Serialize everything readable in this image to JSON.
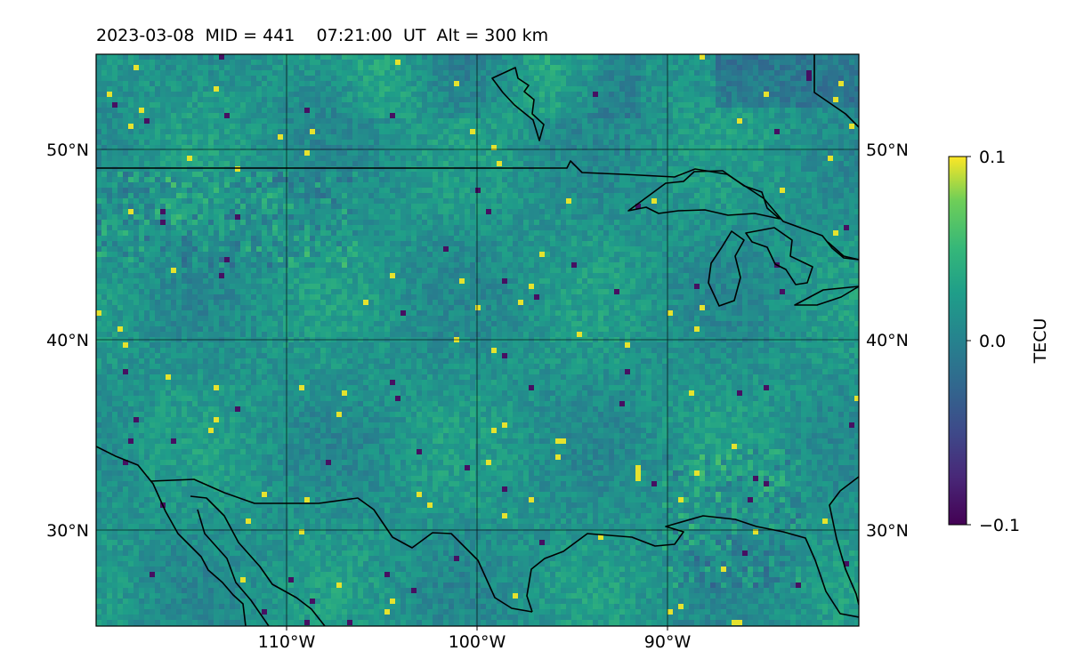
{
  "title": "2023-03-08  MID = 441    07:21:00  UT  Alt = 300 km",
  "map": {
    "lon_range": [
      -120,
      -80
    ],
    "lat_range": [
      25,
      55
    ],
    "lon_ticks": [
      "110°W",
      "100°W",
      "90°W"
    ],
    "lat_ticks": [
      "50°N",
      "40°N",
      "30°N"
    ],
    "gridlines": true,
    "features": [
      "coastlines",
      "international-borders",
      "great-lakes"
    ]
  },
  "colorbar": {
    "label": "TECU",
    "colormap": "viridis",
    "min": -0.1,
    "max": 0.1,
    "tick_labels": [
      "0.1",
      "0.0",
      "−0.1"
    ]
  },
  "colors": {
    "viridis_low": "#440154",
    "viridis_mid": "#21908d",
    "viridis_high": "#fde725",
    "background_field": "#2f8e8a"
  }
}
